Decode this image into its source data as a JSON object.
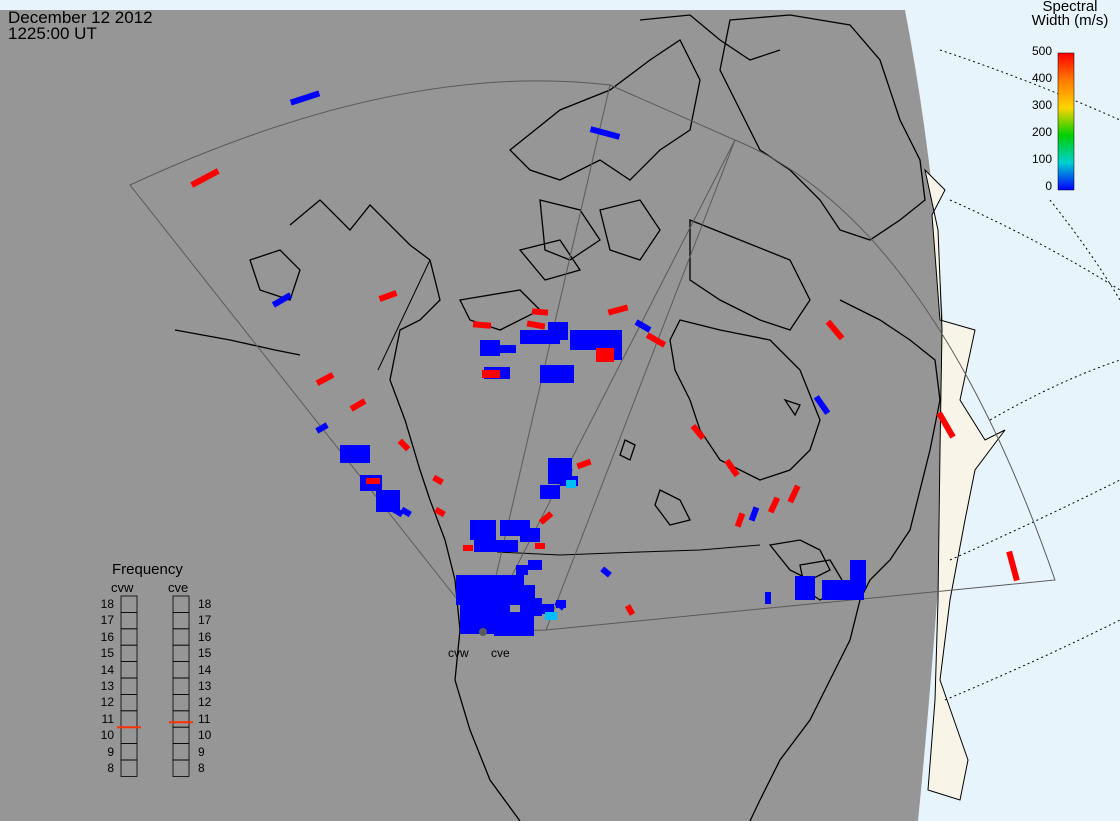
{
  "title": {
    "date": "December 12 2012",
    "time": "1225:00 UT"
  },
  "colorbar": {
    "title_line1": "Spectral",
    "title_line2": "Width (m/s)",
    "ticks": [
      "500",
      "400",
      "300",
      "200",
      "100",
      "0"
    ],
    "colors": [
      "#ff0000",
      "#ff7a00",
      "#ffd400",
      "#00d000",
      "#00d0d0",
      "#0000ff"
    ]
  },
  "frequency": {
    "title": "Frequency",
    "radars": [
      {
        "name": "cvw",
        "value": 10.5
      },
      {
        "name": "cve",
        "value": 10.8
      }
    ],
    "scale": [
      "18",
      "17",
      "16",
      "15",
      "14",
      "13",
      "12",
      "11",
      "10",
      "9",
      "8"
    ]
  },
  "stations": [
    "cvw",
    "cve"
  ],
  "colors": {
    "land": "#969696",
    "ocean_day": "#e8f4fc",
    "land_day": "#f8f4e8",
    "coast": "#000000",
    "fov": "#5a5a5a",
    "low": "#0000ff",
    "high": "#ff0000"
  }
}
